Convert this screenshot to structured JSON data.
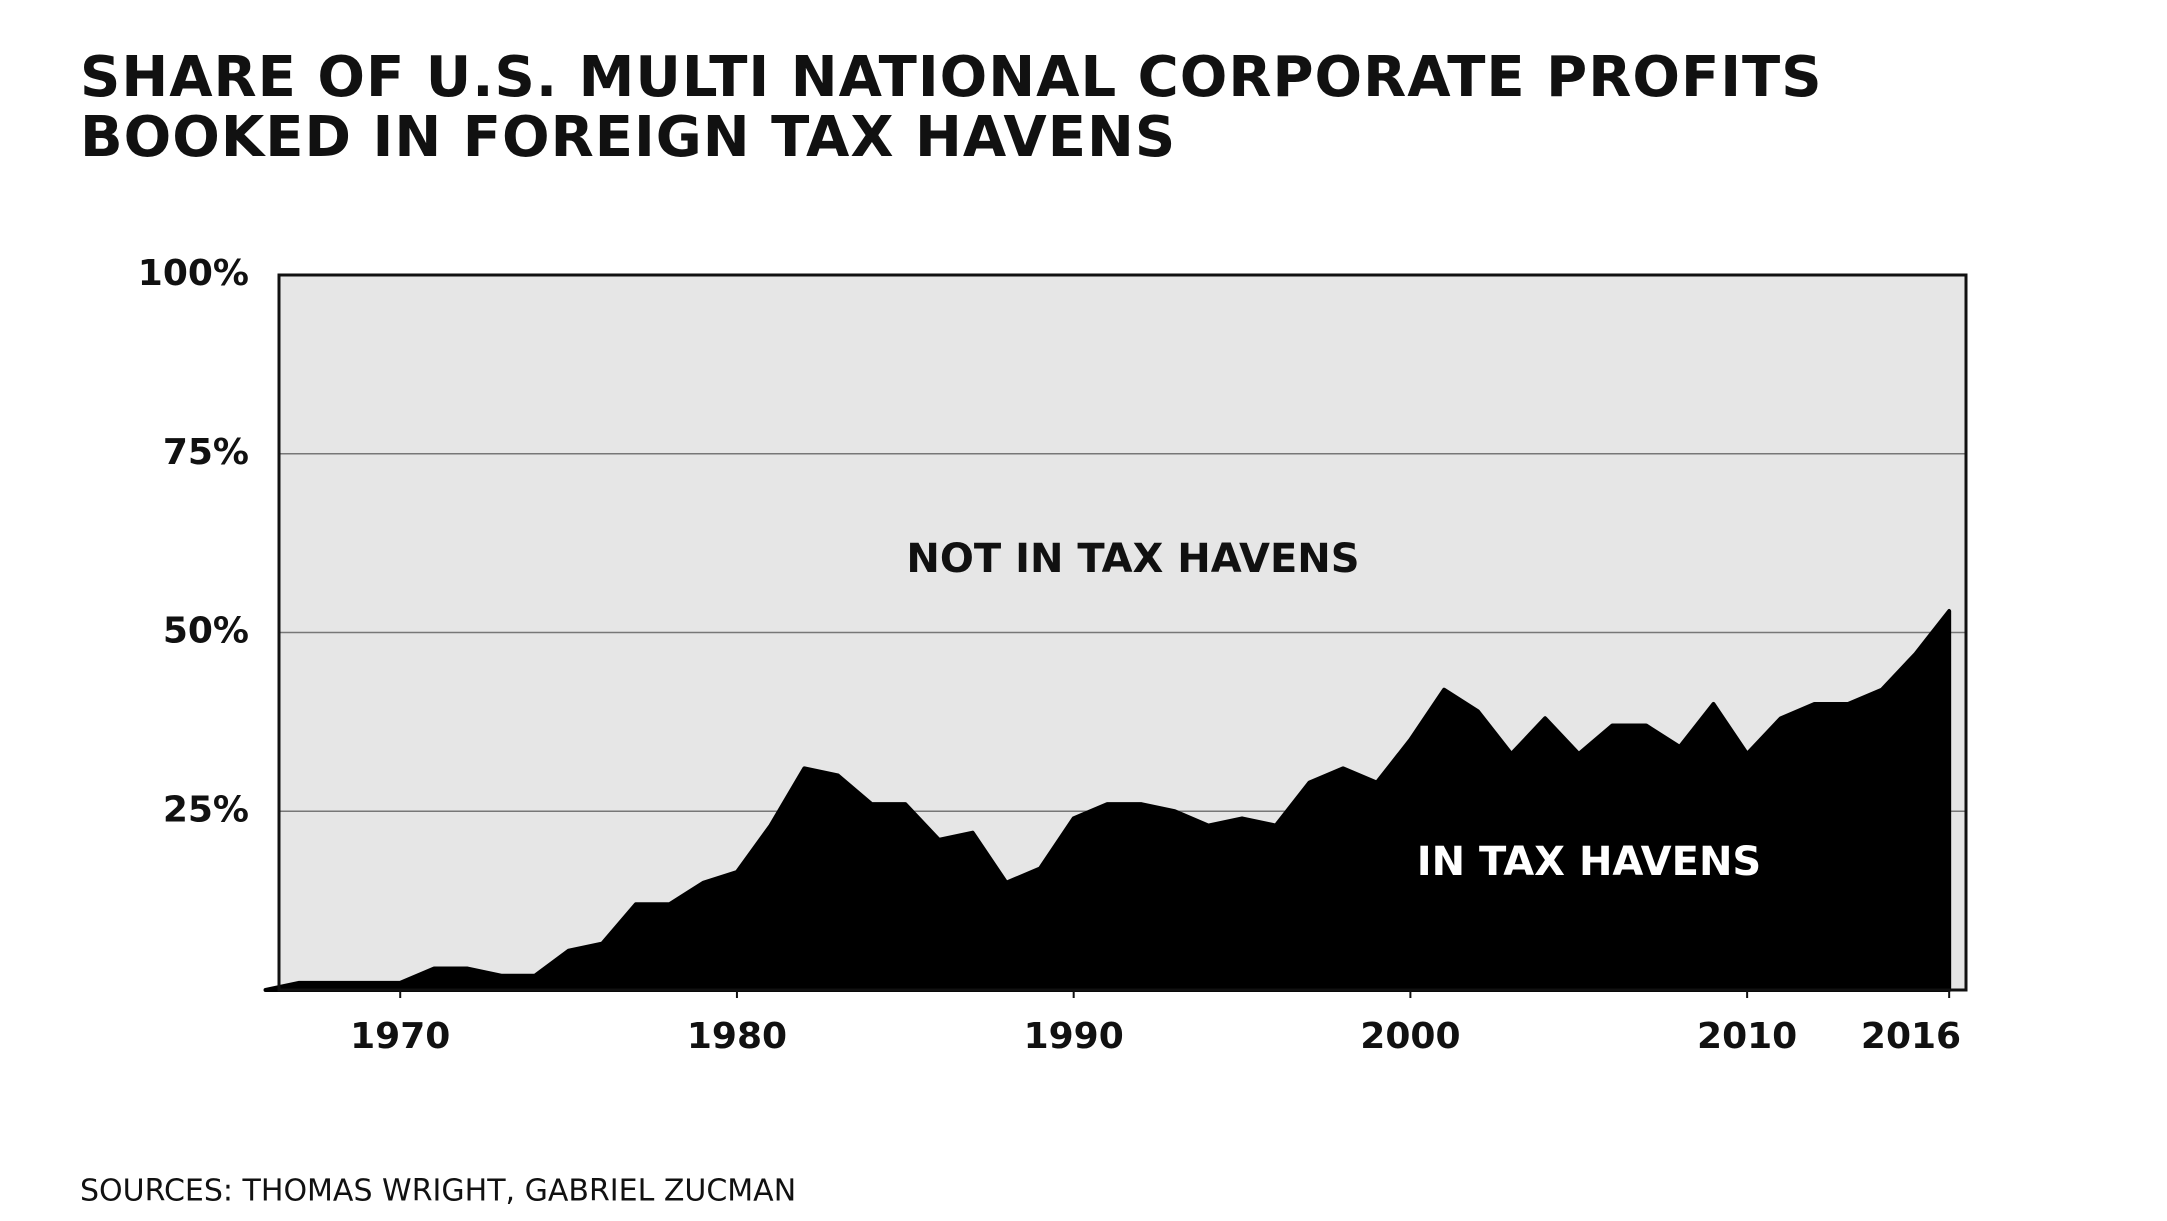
{
  "chart_data": {
    "type": "area",
    "title": "SHARE OF U.S. MULTI NATIONAL CORPORATE PROFITS BOOKED IN FOREIGN TAX HAVENS",
    "source": "SOURCES: THOMAS WRIGHT, GABRIEL ZUCMAN",
    "annotations": [
      "NOT IN TAX HAVENS",
      "IN TAX HAVENS"
    ],
    "x": [
      1966,
      1967,
      1968,
      1969,
      1970,
      1971,
      1972,
      1973,
      1974,
      1975,
      1976,
      1977,
      1978,
      1979,
      1980,
      1981,
      1982,
      1983,
      1984,
      1985,
      1986,
      1987,
      1988,
      1989,
      1990,
      1991,
      1992,
      1993,
      1994,
      1995,
      1996,
      1997,
      1998,
      1999,
      2000,
      2001,
      2002,
      2003,
      2004,
      2005,
      2006,
      2007,
      2008,
      2009,
      2010,
      2011,
      2012,
      2013,
      2014,
      2015,
      2016
    ],
    "series": [
      {
        "name": "IN TAX HAVENS",
        "color": "#000000",
        "values": [
          0,
          1,
          1,
          1,
          1,
          3,
          3,
          2,
          2,
          5.5,
          6.5,
          12,
          12,
          15,
          16.5,
          23,
          31,
          30,
          26,
          26,
          21,
          22,
          15,
          17,
          24,
          26,
          26,
          25,
          23,
          24,
          23,
          29,
          31,
          29,
          35,
          42,
          39,
          33,
          38,
          33,
          37,
          37,
          34,
          40,
          33,
          38,
          40,
          40,
          42,
          47,
          53
        ]
      }
    ],
    "background": "#e6e6e6",
    "xlim": [
      1966.4,
      2016.5
    ],
    "xticks": [
      1970,
      1980,
      1990,
      2000,
      2010,
      2016
    ],
    "ylim": [
      0,
      100
    ],
    "yticks": [
      {
        "value": 25,
        "label": "25%"
      },
      {
        "value": 50,
        "label": "50%"
      },
      {
        "value": 75,
        "label": "75%"
      },
      {
        "value": 100,
        "label": "100%"
      }
    ],
    "grid": true
  }
}
